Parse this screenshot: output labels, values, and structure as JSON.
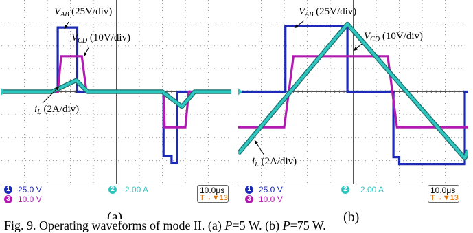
{
  "colors": {
    "ch1": "#1c2ab5",
    "ch2": "#2fc6c0",
    "ch3": "#b21bb0",
    "grid": "#9a9a9a",
    "trigger": "#e07000"
  },
  "chart_data": [
    {
      "type": "line",
      "panel_label": "(a)",
      "annotations": {
        "vab": {
          "sym": "V",
          "sub": "AB",
          "scale": " (25V/div)"
        },
        "vcd": {
          "sym": "V",
          "sub": "CD",
          "scale": " (10V/div)"
        },
        "il": {
          "sym": "i",
          "sub": "L",
          "scale": " (2A/div)"
        }
      },
      "xlim": [
        0,
        10
      ],
      "ylim": [
        -4,
        4
      ],
      "x_unit": "div",
      "y_unit": "div",
      "series": [
        {
          "channel": "1",
          "x": [
            0,
            2.45,
            2.45,
            3.3,
            3.3,
            7.05,
            7.05,
            7.4,
            7.4,
            7.65,
            7.65,
            10
          ],
          "y": [
            0,
            0,
            2.8,
            2.8,
            0,
            0,
            -2.8,
            -2.8,
            -3.1,
            -3.1,
            0,
            0
          ]
        },
        {
          "channel": "3",
          "x": [
            0,
            2.45,
            2.6,
            3.5,
            3.7,
            7.05,
            7.1,
            8.0,
            8.15,
            10
          ],
          "y": [
            0,
            0,
            1.55,
            1.55,
            0,
            0,
            -1.55,
            -1.55,
            0,
            0
          ]
        },
        {
          "channel": "2",
          "x": [
            0,
            2.2,
            3.25,
            3.75,
            7.0,
            7.85,
            8.4,
            10
          ],
          "y": [
            0,
            0,
            0.5,
            0,
            0,
            -0.65,
            0,
            0
          ]
        }
      ]
    },
    {
      "type": "line",
      "panel_label": "(b)",
      "annotations": {
        "vab": {
          "sym": "V",
          "sub": "AB",
          "scale": " (25V/div)"
        },
        "vcd": {
          "sym": "V",
          "sub": "CD",
          "scale": " (10V/div)"
        },
        "il": {
          "sym": "i",
          "sub": "L",
          "scale": " (2A/div)"
        }
      },
      "xlim": [
        0,
        10
      ],
      "ylim": [
        -4,
        4
      ],
      "x_unit": "div",
      "y_unit": "div",
      "series": [
        {
          "channel": "1",
          "x": [
            0,
            2.05,
            2.05,
            4.75,
            4.75,
            6.75,
            6.75,
            7.0,
            7.0,
            9.85,
            9.85,
            10
          ],
          "y": [
            0,
            0,
            2.85,
            2.85,
            0,
            0,
            -2.85,
            -2.85,
            -3.15,
            -3.15,
            0,
            0
          ]
        },
        {
          "channel": "3",
          "x": [
            0,
            2.0,
            2.4,
            6.5,
            6.9,
            10
          ],
          "y": [
            -1.55,
            -1.55,
            1.55,
            1.55,
            -1.55,
            -1.55
          ]
        },
        {
          "channel": "2",
          "x": [
            0,
            4.75,
            9.85,
            10
          ],
          "y": [
            -2.7,
            2.95,
            -2.9,
            -2.55
          ]
        }
      ]
    }
  ],
  "status_bar": {
    "ch1": {
      "badge": "1",
      "value": "25.0 V"
    },
    "ch3": {
      "badge": "3",
      "value": "10.0 V"
    },
    "ch2": {
      "badge": "2",
      "value": "2.00 A"
    },
    "timebase": "10.0μs",
    "trigger_left": "T→▼13",
    "trigger_right": "T→▼13"
  },
  "caption": {
    "prefix": "Fig. 9. Operating waveforms of mode II. (a) ",
    "pa": "P",
    "a_rest": "=5 W. (b) ",
    "pb": "P",
    "b_rest": "=75 W."
  }
}
